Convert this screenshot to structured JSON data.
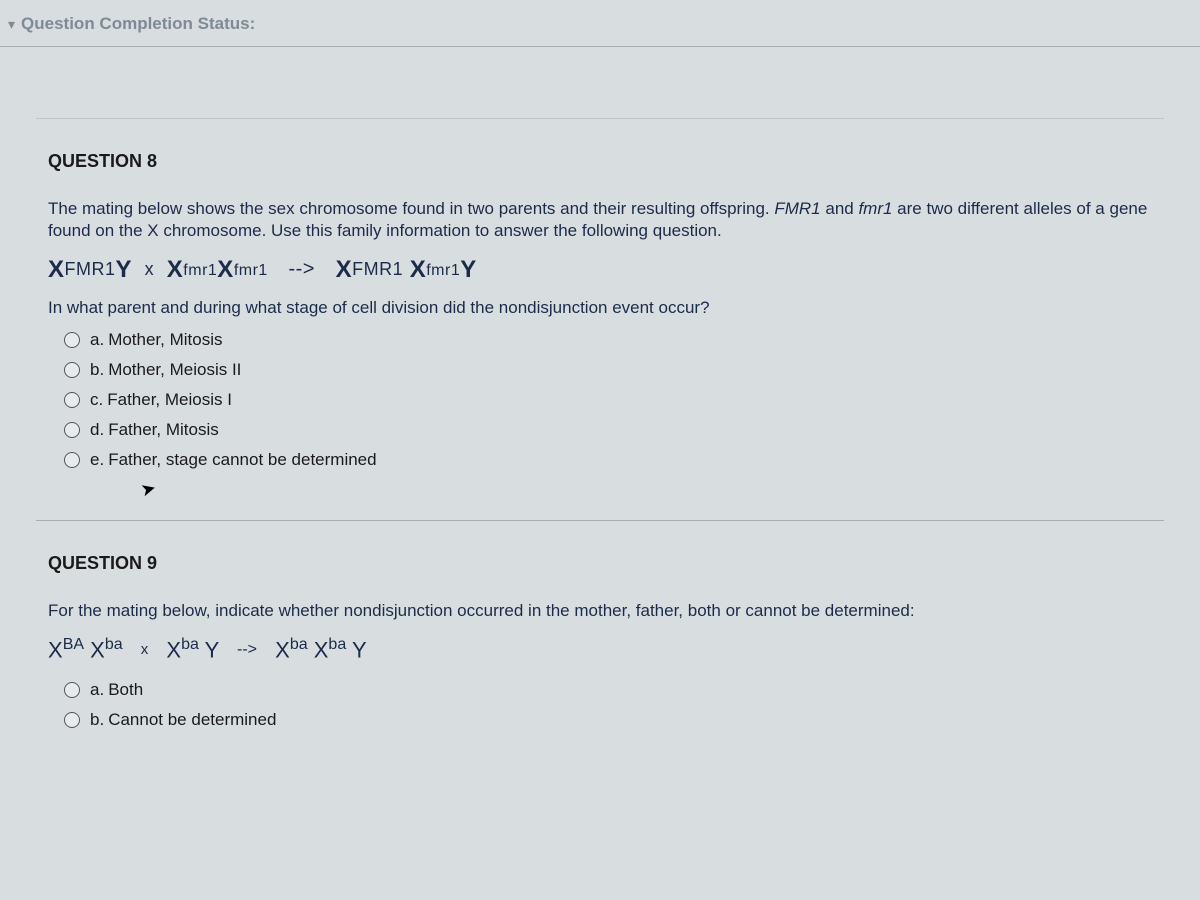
{
  "statusBar": {
    "label": "Question Completion Status:"
  },
  "q8": {
    "heading": "QUESTION 8",
    "intro_a": "The mating below shows the sex chromosome found in two parents and their resulting offspring. ",
    "intro_b": "FMR1",
    "intro_c": " and ",
    "intro_d": "fmr1",
    "intro_e": " are two different alleles of a gene found on the X chromosome. Use this family information to answer the following question.",
    "geno": {
      "p1_x": "X",
      "p1_a": "FMR1",
      "p1_y": "Y",
      "cross": "x",
      "p2_x1": "X",
      "p2_a1": "fmr1",
      "p2_x2": "X",
      "p2_a2": "fmr1",
      "arrow": "-->",
      "o_x1": "X",
      "o_a1": "FMR1",
      "o_x2": "X",
      "o_a2": "fmr1",
      "o_y": "Y"
    },
    "subq": "In what parent and during what stage of cell division did the nondisjunction event occur?",
    "choices": [
      {
        "letter": "a.",
        "text": "Mother, Mitosis"
      },
      {
        "letter": "b.",
        "text": "Mother, Meiosis II"
      },
      {
        "letter": "c.",
        "text": "Father, Meiosis I"
      },
      {
        "letter": "d.",
        "text": "Father, Mitosis"
      },
      {
        "letter": "e.",
        "text": "Father, stage cannot be determined"
      }
    ]
  },
  "q9": {
    "heading": "QUESTION 9",
    "intro": "For the mating below, indicate whether nondisjunction occurred in the mother, father, both or cannot be determined:",
    "geno": {
      "m_x1": "X",
      "m_s1": "BA",
      "m_x2": "X",
      "m_s2": "ba",
      "cross": "x",
      "f_x": "X",
      "f_s": "ba",
      "f_y": "Y",
      "arrow": "-->",
      "o_x1": "X",
      "o_s1": "ba",
      "o_x2": "X",
      "o_s2": "ba",
      "o_y": "Y"
    },
    "choices": [
      {
        "letter": "a.",
        "text": "Both"
      },
      {
        "letter": "b.",
        "text": "Cannot be determined"
      }
    ]
  },
  "colors": {
    "background": "#d8dde0",
    "status_text": "#7e8a95",
    "body_text": "#1a1a1a",
    "question_text": "#1a2c4a",
    "divider": "#a8adb0"
  }
}
